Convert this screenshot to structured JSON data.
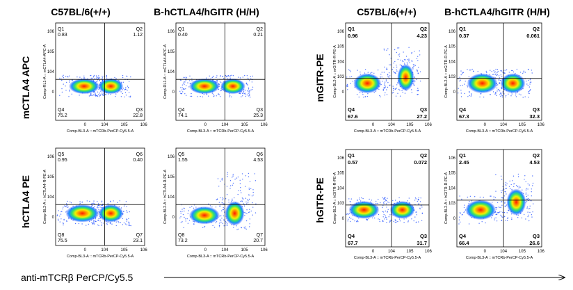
{
  "headers": {
    "left_col1": "C57BL/6(+/+)",
    "left_col2": "B-hCTLA4/hGITR (H/H)",
    "right_col1": "C57BL/6(+/+)",
    "right_col2": "B-hCTLA4/hGITR (H/H)"
  },
  "row_labels": {
    "mctla4": "mCTLA4 APC",
    "hctla4": "hCTLA4 PE",
    "mgitr": "mGITR-PE",
    "hgitr": "hGITR-PE"
  },
  "footer": "anti-mTCRβ PerCP/Cy5.5",
  "colors": {
    "quadrant_line": "#000000",
    "density_high": "#ff2000",
    "density_mid": "#ffd000",
    "density_low": "#1040ff"
  },
  "chart_data": [
    {
      "type": "scatter",
      "id": "p11",
      "xlabel": "Comp-BL3-A :: mTCRb-PerCP-Cy5.5-A",
      "ylabel": "Comp-RL1-A :: mCTLA4-APC-A",
      "x_ticks": [
        "0",
        "10^4",
        "10^5",
        "10^6"
      ],
      "y_ticks": [
        "0",
        "10^4",
        "10^5",
        "10^6"
      ],
      "quadrants": [
        {
          "name": "Q1",
          "value": "0.83"
        },
        {
          "name": "Q2",
          "value": "1.12"
        },
        {
          "name": "Q3",
          "value": "22.8"
        },
        {
          "name": "Q4",
          "value": "75.2"
        }
      ]
    },
    {
      "type": "scatter",
      "id": "p12",
      "xlabel": "Comp-BL3-A :: mTCRb-PerCP-Cy5.5-A",
      "ylabel": "Comp-RL1-A :: mCTLA4-APC-A",
      "x_ticks": [
        "0",
        "10^4",
        "10^5",
        "10^6"
      ],
      "y_ticks": [
        "0",
        "10^4",
        "10^5",
        "10^6"
      ],
      "quadrants": [
        {
          "name": "Q1",
          "value": "0.40"
        },
        {
          "name": "Q2",
          "value": "0.21"
        },
        {
          "name": "Q3",
          "value": "25.3"
        },
        {
          "name": "Q4",
          "value": "74.1"
        }
      ]
    },
    {
      "type": "scatter",
      "id": "p21",
      "xlabel": "Comp-BL3-A :: mTCRb-PerCP-Cy5.5-A",
      "ylabel": "Comp-BL2-A :: hCTLA4-R-PE-A",
      "x_ticks": [
        "0",
        "10^4",
        "10^5",
        "10^6"
      ],
      "y_ticks": [
        "0",
        "10^4",
        "10^5",
        "10^6"
      ],
      "quadrants": [
        {
          "name": "Q5",
          "value": "0.95"
        },
        {
          "name": "Q6",
          "value": "0.40"
        },
        {
          "name": "Q7",
          "value": "23.1"
        },
        {
          "name": "Q8",
          "value": "75.5"
        }
      ]
    },
    {
      "type": "scatter",
      "id": "p22",
      "xlabel": "Comp-BL3-A :: mTCRb-PerCP-Cy5.5-A",
      "ylabel": "Comp-BL2-A :: hCTLA4-R-PE-A",
      "x_ticks": [
        "0",
        "10^4",
        "10^5",
        "10^6"
      ],
      "y_ticks": [
        "0",
        "10^4",
        "10^5",
        "10^6"
      ],
      "quadrants": [
        {
          "name": "Q5",
          "value": "1.55"
        },
        {
          "name": "Q6",
          "value": "4.53"
        },
        {
          "name": "Q7",
          "value": "20.7"
        },
        {
          "name": "Q8",
          "value": "73.2"
        }
      ]
    },
    {
      "type": "scatter",
      "id": "p13",
      "xlabel": "Comp-BL3-A :: mTCRb-PerCP-Cy5.5-A",
      "ylabel": "Comp-BL2-A :: mGITR-R-PE-A",
      "x_ticks": [
        "0",
        "10^4",
        "10^5",
        "10^6"
      ],
      "y_ticks": [
        "0",
        "10^3",
        "10^4",
        "10^5",
        "10^6"
      ],
      "quadrants": [
        {
          "name": "Q1",
          "value": "0.96"
        },
        {
          "name": "Q2",
          "value": "4.23"
        },
        {
          "name": "Q3",
          "value": "27.2"
        },
        {
          "name": "Q4",
          "value": "67.6"
        }
      ]
    },
    {
      "type": "scatter",
      "id": "p14",
      "xlabel": "Comp-BL3-A :: mTCRb-PerCP-Cy5.5-A",
      "ylabel": "Comp-BL2-A :: mGITR-R-PE-A",
      "x_ticks": [
        "0",
        "10^4",
        "10^5",
        "10^6"
      ],
      "y_ticks": [
        "0",
        "10^3",
        "10^4",
        "10^5",
        "10^6"
      ],
      "quadrants": [
        {
          "name": "Q1",
          "value": "0.37"
        },
        {
          "name": "Q2",
          "value": "0.061"
        },
        {
          "name": "Q3",
          "value": "32.3"
        },
        {
          "name": "Q4",
          "value": "67.3"
        }
      ]
    },
    {
      "type": "scatter",
      "id": "p23",
      "xlabel": "Comp-BL3-A :: mTCRb-PerCP-Cy5.5-A",
      "ylabel": "Comp-BL2-A :: hGITR-R-PE-A",
      "x_ticks": [
        "0",
        "10^4",
        "10^5",
        "10^6"
      ],
      "y_ticks": [
        "0",
        "10^3",
        "10^4",
        "10^5",
        "10^6"
      ],
      "quadrants": [
        {
          "name": "Q1",
          "value": "0.57"
        },
        {
          "name": "Q2",
          "value": "0.072"
        },
        {
          "name": "Q3",
          "value": "31.7"
        },
        {
          "name": "Q4",
          "value": "67.7"
        }
      ]
    },
    {
      "type": "scatter",
      "id": "p24",
      "xlabel": "Comp-BL3-A :: mTCRb-PerCP-Cy5.5-A",
      "ylabel": "Comp-BL2-A :: hGITR-R-PE-A",
      "x_ticks": [
        "0",
        "10^4",
        "10^5",
        "10^6"
      ],
      "y_ticks": [
        "0",
        "10^3",
        "10^4",
        "10^5",
        "10^6"
      ],
      "quadrants": [
        {
          "name": "Q1",
          "value": "2.45"
        },
        {
          "name": "Q2",
          "value": "4.53"
        },
        {
          "name": "Q3",
          "value": "26.6"
        },
        {
          "name": "Q4",
          "value": "66.4"
        }
      ]
    }
  ]
}
